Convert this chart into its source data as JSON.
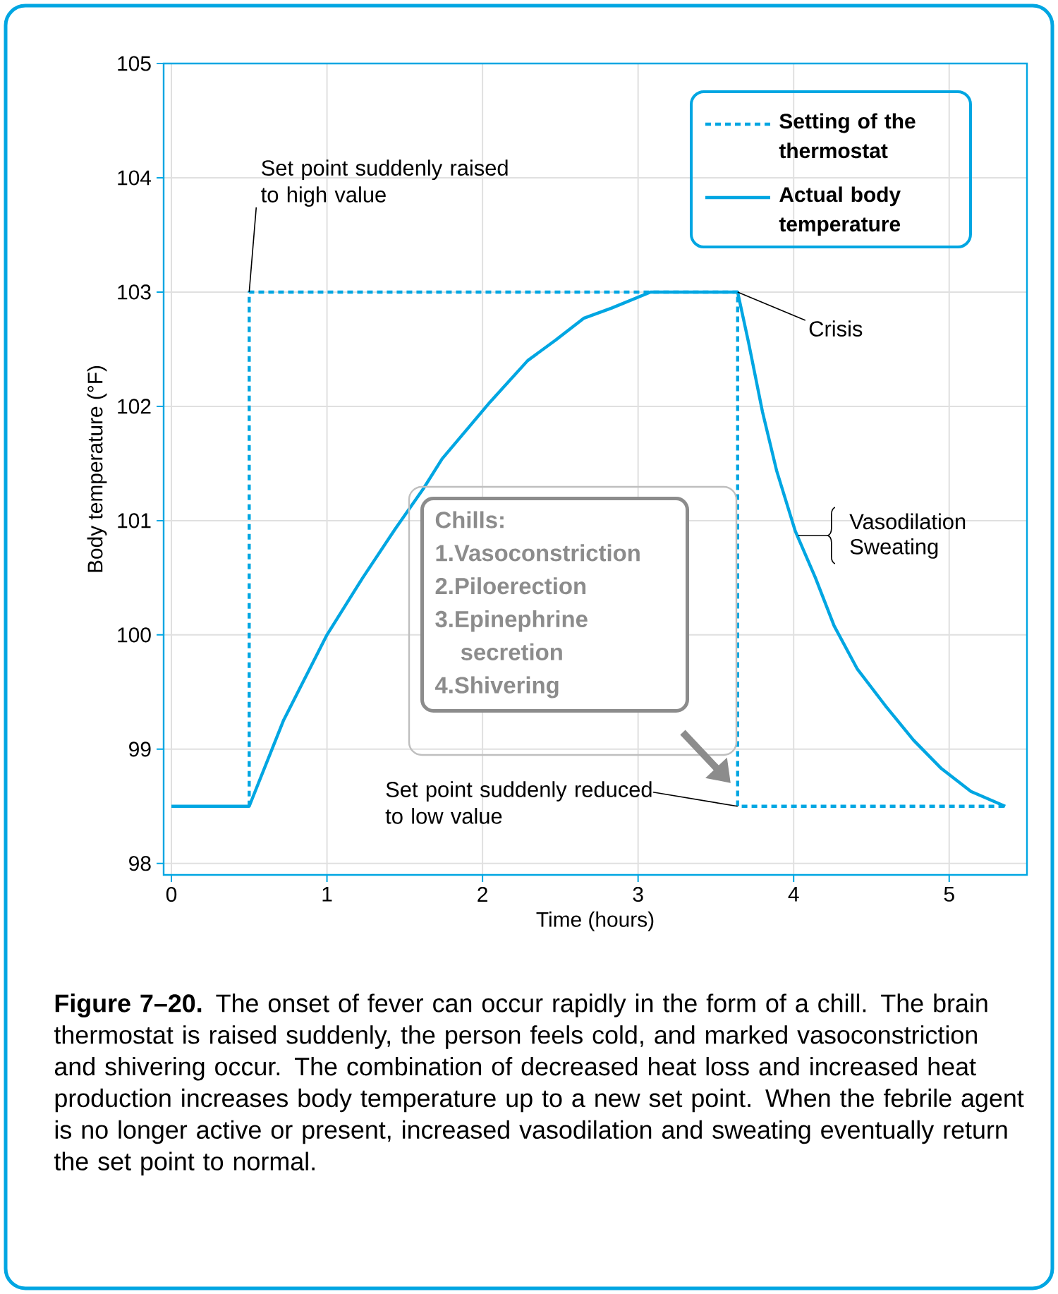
{
  "chart_data": {
    "type": "line",
    "xlabel": "Time (hours)",
    "ylabel": "Body temperature (°F)",
    "xlim": [
      -0.05,
      5.5
    ],
    "ylim": [
      97.9,
      105
    ],
    "xticks": [
      0,
      1,
      2,
      3,
      4,
      5
    ],
    "yticks": [
      98,
      99,
      100,
      101,
      102,
      103,
      104,
      105
    ],
    "grid": true,
    "legend": "top right",
    "series": [
      {
        "name": "Setting of the thermostat",
        "color": "#00a6e2",
        "line_style": "dashed",
        "x": [
          0.5,
          0.5,
          3.64,
          3.64,
          5.36
        ],
        "values": [
          98.5,
          103,
          103,
          98.5,
          98.5
        ]
      },
      {
        "name": "Actual body temperature",
        "color": "#00a6e2",
        "line_style": "solid",
        "x": [
          0,
          0.5,
          0.72,
          1.0,
          1.23,
          1.44,
          1.62,
          1.74,
          2.05,
          2.29,
          2.47,
          2.65,
          2.83,
          3.08,
          3.64,
          3.71,
          3.8,
          3.89,
          4.01,
          4.14,
          4.26,
          4.41,
          4.59,
          4.77,
          4.95,
          5.14,
          5.36
        ],
        "values": [
          98.5,
          98.5,
          99.25,
          100.0,
          100.5,
          100.93,
          101.28,
          101.54,
          102.04,
          102.4,
          102.58,
          102.77,
          102.86,
          103,
          103,
          102.56,
          101.95,
          101.44,
          100.91,
          100.5,
          100.08,
          99.7,
          99.38,
          99.08,
          98.83,
          98.63,
          98.5
        ]
      }
    ],
    "annotations": [
      {
        "text": "Set point suddenly raised to high value",
        "x": 0.5,
        "y": 103
      },
      {
        "text": "Crisis",
        "x": 3.64,
        "y": 103
      },
      {
        "text": "Vasodilation",
        "x": 4.03,
        "y": 100.87
      },
      "Sweating",
      {
        "text": "Set point suddenly reduced to low value",
        "x": 3.64,
        "y": 98.5
      },
      "Chills:",
      "1.Vasoconstriction",
      "2.Piloerection",
      "3.Epinephrine secretion",
      "4.Shivering",
      "**Figure 7–20.** The onset of fever can occur rapidly in the form of a chill. The brain thermostat is raised suddenly, the person feels cold, and marked vasoconstriction and shivering occur. The combination of decreased heat loss and increased heat production increases body temperature up to a new set point. When the febrile agent is no longer active or present, increased vasodilation and sweating eventually return the set point to normal."
    ]
  }
}
